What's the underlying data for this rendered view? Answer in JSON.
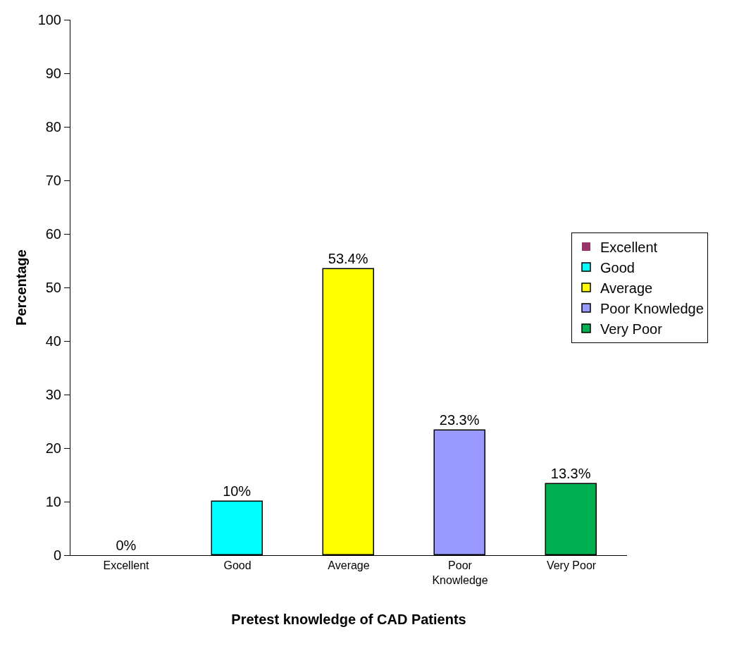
{
  "chart_data": {
    "type": "bar",
    "xlabel": "Pretest knowledge of CAD Patients",
    "ylabel": "Percentage",
    "categories": [
      "Excellent",
      "Good",
      "Average",
      "Poor Knowledge",
      "Very Poor"
    ],
    "series": [
      {
        "name": "Excellent",
        "color": "#993366",
        "values": [
          0,
          null,
          null,
          null,
          null
        ],
        "value_labels": [
          "0%",
          null,
          null,
          null,
          null
        ]
      },
      {
        "name": "Good",
        "color": "#00ffff",
        "values": [
          null,
          10,
          null,
          null,
          null
        ],
        "value_labels": [
          null,
          "10%",
          null,
          null,
          null
        ]
      },
      {
        "name": "Average",
        "color": "#ffff00",
        "values": [
          null,
          null,
          53.4,
          null,
          null
        ],
        "value_labels": [
          null,
          null,
          "53.4%",
          null,
          null
        ]
      },
      {
        "name": "Poor Knowledge",
        "color": "#9999ff",
        "values": [
          null,
          null,
          null,
          23.3,
          null
        ],
        "value_labels": [
          null,
          null,
          null,
          "23.3%",
          null
        ]
      },
      {
        "name": "Very Poor",
        "color": "#00b050",
        "values": [
          null,
          null,
          null,
          null,
          13.3
        ],
        "value_labels": [
          null,
          null,
          null,
          null,
          "13.3%"
        ]
      }
    ],
    "ylim": [
      0,
      100
    ],
    "yticks": [
      0,
      10,
      20,
      30,
      40,
      50,
      60,
      70,
      80,
      90,
      100
    ],
    "grid": false,
    "legend": "right"
  }
}
